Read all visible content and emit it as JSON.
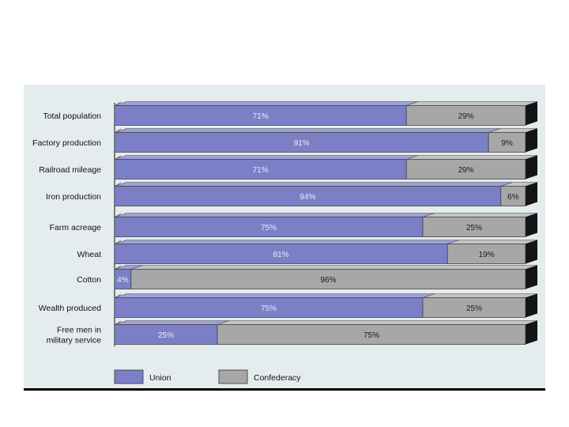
{
  "chart_data": {
    "type": "bar",
    "stacked": true,
    "orientation": "horizontal",
    "normalized_percent": true,
    "categories": [
      [
        "Total population"
      ],
      [
        "Factory production"
      ],
      [
        "Railroad mileage"
      ],
      [
        "Iron production"
      ],
      [
        "Farm acreage"
      ],
      [
        "Wheat"
      ],
      [
        "Cotton"
      ],
      [
        "Wealth produced"
      ],
      [
        "Free men in",
        "military service"
      ]
    ],
    "series": [
      {
        "name": "Union",
        "color": "#7b80c6",
        "values": [
          71,
          91,
          71,
          94,
          75,
          81,
          4,
          75,
          25
        ],
        "labels": [
          "71%",
          "91%",
          "71%",
          "94%",
          "75%",
          "81%",
          "4%",
          "75%",
          "25%"
        ]
      },
      {
        "name": "Confederacy",
        "color": "#a7a7a7",
        "values": [
          29,
          9,
          29,
          6,
          25,
          19,
          96,
          25,
          75
        ],
        "labels": [
          "29%",
          "9%",
          "29%",
          "6%",
          "25%",
          "19%",
          "96%",
          "25%",
          "75%"
        ]
      }
    ],
    "xlim": [
      0,
      100
    ],
    "legend_position": "bottom"
  }
}
